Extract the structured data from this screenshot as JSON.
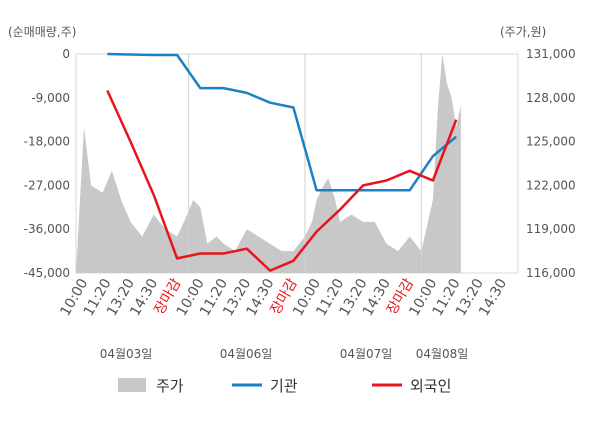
{
  "chart_data": {
    "type": "line",
    "left_unit": "(순매매량,주)",
    "right_unit": "(주가,원)",
    "left_axis": {
      "ticks": [
        "0",
        "-9,000",
        "-18,000",
        "-27,000",
        "-36,000",
        "-45,000"
      ],
      "min": -45000,
      "max": 0
    },
    "right_axis": {
      "ticks": [
        "131,000",
        "128,000",
        "125,000",
        "122,000",
        "119,000",
        "116,000"
      ],
      "min": 116000,
      "max": 131000
    },
    "x_tick_labels": [
      "10:00",
      "11:20",
      "13:20",
      "14:30",
      "장마감",
      "10:00",
      "11:20",
      "13:20",
      "14:30",
      "장마감",
      "10:00",
      "11:20",
      "13:20",
      "14:30",
      "장마감",
      "10:00",
      "11:20",
      "13:20",
      "14:30"
    ],
    "dates": [
      "04월03일",
      "04월06일",
      "04월07일",
      "04월08일"
    ],
    "legend": [
      {
        "key": "price",
        "label": "주가",
        "color": "#c8c8c8",
        "shape": "area"
      },
      {
        "key": "institution",
        "label": "기관",
        "color": "#1a82c4",
        "shape": "line"
      },
      {
        "key": "foreign",
        "label": "외국인",
        "color": "#e8141c",
        "shape": "line"
      }
    ],
    "series": [
      {
        "name": "기관",
        "axis": "left",
        "color": "#1a82c4",
        "points": [
          [
            1,
            0
          ],
          [
            2,
            -100
          ],
          [
            3,
            -200
          ],
          [
            4,
            -200
          ],
          [
            5,
            -7000
          ],
          [
            6,
            -7000
          ],
          [
            7,
            -8000
          ],
          [
            8,
            -10000
          ],
          [
            9,
            -11000
          ],
          [
            10,
            -28000
          ],
          [
            11,
            -28000
          ],
          [
            12,
            -28000
          ],
          [
            13,
            -28000
          ],
          [
            14,
            -28000
          ],
          [
            15,
            -21000
          ],
          [
            16,
            -17000
          ]
        ]
      },
      {
        "name": "외국인",
        "axis": "left",
        "color": "#e8141c",
        "points": [
          [
            1,
            -7500
          ],
          [
            2,
            -18000
          ],
          [
            3,
            -29000
          ],
          [
            4,
            -42000
          ],
          [
            5,
            -41000
          ],
          [
            6,
            -41000
          ],
          [
            7,
            -40000
          ],
          [
            8,
            -44500
          ],
          [
            9,
            -42500
          ],
          [
            10,
            -36500
          ],
          [
            11,
            -32000
          ],
          [
            12,
            -27000
          ],
          [
            13,
            -26000
          ],
          [
            14,
            -24000
          ],
          [
            15,
            -26000
          ],
          [
            16,
            -13500
          ]
        ]
      },
      {
        "name": "주가",
        "axis": "right",
        "color": "#c8c8c8",
        "points": [
          [
            0,
            126000
          ],
          [
            0.3,
            122000
          ],
          [
            0.8,
            121500
          ],
          [
            1.2,
            123000
          ],
          [
            1.6,
            121000
          ],
          [
            2,
            119500
          ],
          [
            2.5,
            118500
          ],
          [
            3,
            120000
          ],
          [
            3.5,
            119000
          ],
          [
            4,
            118500
          ],
          [
            4.3,
            119500
          ],
          [
            4.7,
            121000
          ],
          [
            5,
            120500
          ],
          [
            5.3,
            118000
          ],
          [
            5.7,
            118500
          ],
          [
            6,
            118000
          ],
          [
            6.5,
            117500
          ],
          [
            7,
            119000
          ],
          [
            7.5,
            118500
          ],
          [
            8,
            118000
          ],
          [
            8.5,
            117500
          ],
          [
            9,
            117500
          ],
          [
            9.5,
            118500
          ],
          [
            9.8,
            119500
          ],
          [
            10,
            121000
          ],
          [
            10.3,
            122000
          ],
          [
            10.5,
            122500
          ],
          [
            10.8,
            121000
          ],
          [
            11,
            119500
          ],
          [
            11.5,
            120000
          ],
          [
            12,
            119500
          ],
          [
            12.5,
            119500
          ],
          [
            13,
            118000
          ],
          [
            13.5,
            117500
          ],
          [
            14,
            118500
          ],
          [
            14.5,
            117500
          ],
          [
            15,
            121000
          ],
          [
            15.2,
            127000
          ],
          [
            15.4,
            131000
          ],
          [
            15.6,
            129000
          ],
          [
            15.8,
            128000
          ],
          [
            16,
            126000
          ],
          [
            16.2,
            127500
          ]
        ]
      }
    ]
  }
}
